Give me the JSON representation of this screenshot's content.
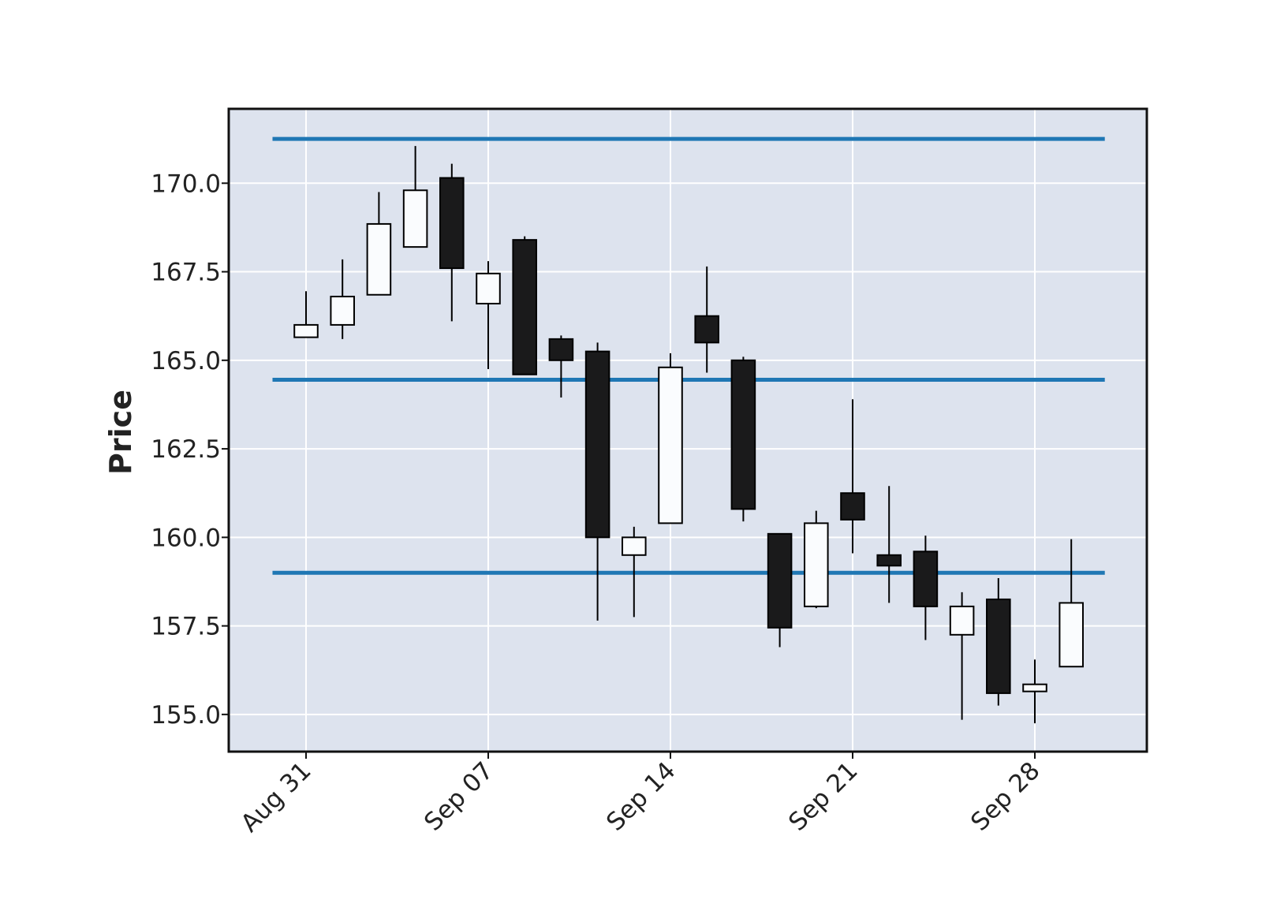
{
  "chart_data": {
    "type": "candlestick",
    "ylabel": "Price",
    "ylim": [
      153.95,
      172.1
    ],
    "yticks": [
      155.0,
      157.5,
      160.0,
      162.5,
      165.0,
      167.5,
      170.0
    ],
    "ytick_labels": [
      "155.0",
      "157.5",
      "160.0",
      "162.5",
      "165.0",
      "167.5",
      "170.0"
    ],
    "xticks": [
      {
        "date": "2015-08-31",
        "label": "Aug 31"
      },
      {
        "date": "2015-09-07",
        "label": "Sep 07"
      },
      {
        "date": "2015-09-14",
        "label": "Sep 14"
      },
      {
        "date": "2015-09-21",
        "label": "Sep 21"
      },
      {
        "date": "2015-09-28",
        "label": "Sep 28"
      }
    ],
    "grid": true,
    "colors": {
      "background": "#dde3ee",
      "grid": "#ffffff",
      "up_candle": "#fafcfe",
      "down_candle": "#1a1a1b",
      "outline": "#000000",
      "hlines": "#1f77b4"
    },
    "hlines": [
      171.25,
      164.45,
      159.0
    ],
    "candles": [
      {
        "date": "2015-08-31",
        "open": 165.65,
        "high": 166.95,
        "low": 165.65,
        "close": 166.0
      },
      {
        "date": "2015-09-01",
        "open": 166.0,
        "high": 167.85,
        "low": 165.6,
        "close": 166.8
      },
      {
        "date": "2015-09-02",
        "open": 166.85,
        "high": 169.75,
        "low": 166.85,
        "close": 168.85
      },
      {
        "date": "2015-09-03",
        "open": 168.2,
        "high": 171.05,
        "low": 168.2,
        "close": 169.8
      },
      {
        "date": "2015-09-04",
        "open": 170.15,
        "high": 170.55,
        "low": 166.1,
        "close": 167.6
      },
      {
        "date": "2015-09-07",
        "open": 166.6,
        "high": 167.8,
        "low": 164.75,
        "close": 167.45
      },
      {
        "date": "2015-09-08",
        "open": 168.4,
        "high": 168.5,
        "low": 164.6,
        "close": 164.6
      },
      {
        "date": "2015-09-09",
        "open": 165.6,
        "high": 165.7,
        "low": 163.95,
        "close": 165.0
      },
      {
        "date": "2015-09-10",
        "open": 165.25,
        "high": 165.5,
        "low": 157.65,
        "close": 160.0
      },
      {
        "date": "2015-09-11",
        "open": 159.5,
        "high": 160.3,
        "low": 157.75,
        "close": 160.0
      },
      {
        "date": "2015-09-14",
        "open": 160.4,
        "high": 165.2,
        "low": 160.4,
        "close": 164.8
      },
      {
        "date": "2015-09-15",
        "open": 166.25,
        "high": 167.65,
        "low": 164.65,
        "close": 165.5
      },
      {
        "date": "2015-09-16",
        "open": 165.0,
        "high": 165.1,
        "low": 160.45,
        "close": 160.8
      },
      {
        "date": "2015-09-17",
        "open": 160.1,
        "high": 160.1,
        "low": 156.9,
        "close": 157.45
      },
      {
        "date": "2015-09-18",
        "open": 158.05,
        "high": 160.75,
        "low": 158.0,
        "close": 160.4
      },
      {
        "date": "2015-09-21",
        "open": 161.25,
        "high": 163.9,
        "low": 159.55,
        "close": 160.5
      },
      {
        "date": "2015-09-22",
        "open": 159.5,
        "high": 161.45,
        "low": 158.15,
        "close": 159.2
      },
      {
        "date": "2015-09-23",
        "open": 159.6,
        "high": 160.05,
        "low": 157.1,
        "close": 158.05
      },
      {
        "date": "2015-09-24",
        "open": 157.25,
        "high": 158.45,
        "low": 154.85,
        "close": 158.05
      },
      {
        "date": "2015-09-25",
        "open": 158.25,
        "high": 158.85,
        "low": 155.25,
        "close": 155.6
      },
      {
        "date": "2015-09-28",
        "open": 155.65,
        "high": 156.55,
        "low": 154.75,
        "close": 155.85
      },
      {
        "date": "2015-09-29",
        "open": 156.35,
        "high": 159.95,
        "low": 156.35,
        "close": 158.15
      }
    ]
  }
}
